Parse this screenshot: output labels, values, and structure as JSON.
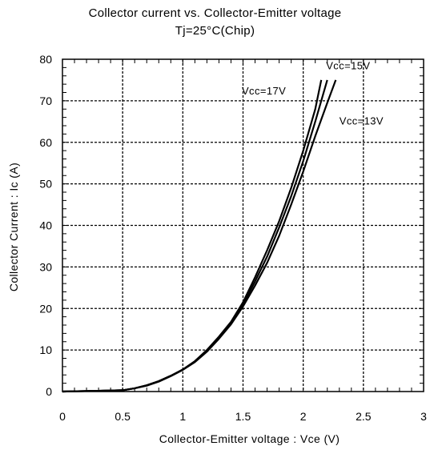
{
  "chart_data": {
    "type": "line",
    "title": "Collector current vs. Collector-Emitter voltage",
    "subtitle": "Tj=25°C(Chip)",
    "xlabel": "Collector-Emitter voltage : Vce   (V)",
    "ylabel": "Collector Current : Ic   (A)",
    "xlim": [
      0,
      3
    ],
    "ylim": [
      0,
      80
    ],
    "xticks": [
      "0",
      "0.5",
      "1",
      "1.5",
      "2",
      "2.5",
      "3"
    ],
    "yticks": [
      "0",
      "10",
      "20",
      "30",
      "40",
      "50",
      "60",
      "70",
      "80"
    ],
    "grid": true,
    "series": [
      {
        "name": "Vcc=17V",
        "x": [
          0.0,
          0.5,
          0.6,
          0.7,
          0.8,
          0.9,
          1.0,
          1.1,
          1.2,
          1.3,
          1.4,
          1.5,
          1.6,
          1.7,
          1.8,
          1.9,
          2.0,
          2.1,
          2.15
        ],
        "y": [
          0,
          0.3,
          0.8,
          1.5,
          2.5,
          3.8,
          5.3,
          7.3,
          10.0,
          13.2,
          16.8,
          21.5,
          27.5,
          34.0,
          41.0,
          49.0,
          58.0,
          68.0,
          75.0
        ]
      },
      {
        "name": "Vcc=15V",
        "x": [
          0.0,
          0.5,
          0.6,
          0.7,
          0.8,
          0.9,
          1.0,
          1.1,
          1.2,
          1.3,
          1.4,
          1.5,
          1.6,
          1.7,
          1.8,
          1.9,
          2.0,
          2.1,
          2.2
        ],
        "y": [
          0,
          0.3,
          0.8,
          1.5,
          2.5,
          3.8,
          5.3,
          7.3,
          9.9,
          13.0,
          16.5,
          21.0,
          26.5,
          32.5,
          39.5,
          47.0,
          55.5,
          65.0,
          75.0
        ]
      },
      {
        "name": "Vcc=13V",
        "x": [
          0.0,
          0.5,
          0.6,
          0.7,
          0.8,
          0.9,
          1.0,
          1.1,
          1.2,
          1.3,
          1.4,
          1.5,
          1.6,
          1.7,
          1.8,
          1.9,
          2.0,
          2.1,
          2.2,
          2.27
        ],
        "y": [
          0,
          0.3,
          0.8,
          1.4,
          2.4,
          3.7,
          5.2,
          7.1,
          9.6,
          12.7,
          16.2,
          20.5,
          25.5,
          31.0,
          37.5,
          45.0,
          53.0,
          61.5,
          69.5,
          75.0
        ]
      }
    ],
    "annotations": [
      "Vcc=15V",
      "Vcc=17V",
      "Vcc=13V"
    ]
  }
}
